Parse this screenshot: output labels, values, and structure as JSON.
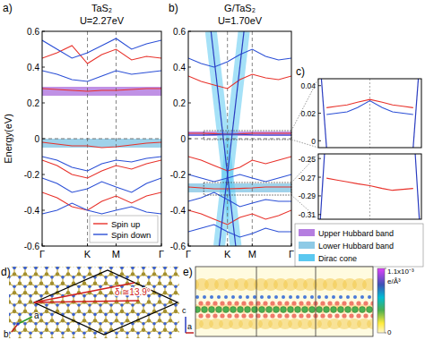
{
  "chart_data": [
    {
      "type": "line",
      "panel": "a)",
      "title": "TaS₂",
      "subtitle": "U=2.27eV",
      "y_label": "Energy(eV)",
      "x": [
        0,
        0.125,
        0.25,
        0.38,
        0.5,
        0.62,
        0.75,
        0.875,
        1
      ],
      "xlim": [
        0,
        1
      ],
      "xticks": [
        {
          "value": 0,
          "label": "Γ"
        },
        {
          "value": 0.38,
          "label": "K"
        },
        {
          "value": 0.62,
          "label": "M"
        },
        {
          "value": 1,
          "label": "Γ"
        }
      ],
      "ylim": [
        -0.6,
        0.6
      ],
      "yticks": [
        -0.6,
        -0.4,
        -0.2,
        0,
        0.2,
        0.4,
        0.6
      ],
      "fermi_level": 0,
      "legend": "lower right",
      "regions": [
        {
          "color": "#b57ee0",
          "range": [
            0.24,
            0.29
          ]
        },
        {
          "color": "#8ecae6",
          "range": [
            -0.05,
            0
          ]
        }
      ],
      "series": [
        {
          "name": "Spin up",
          "color": "#e8312a",
          "bands": [
            [
              0.28,
              0.275,
              0.27,
              0.265,
              0.27,
              0.27,
              0.275,
              0.28,
              0.28
            ],
            [
              0.45,
              0.48,
              0.52,
              0.42,
              0.47,
              0.5,
              0.44,
              0.46,
              0.45
            ],
            [
              -0.02,
              -0.03,
              -0.04,
              -0.04,
              -0.05,
              -0.045,
              -0.035,
              -0.025,
              -0.02
            ],
            [
              -0.12,
              -0.15,
              -0.2,
              -0.22,
              -0.18,
              -0.15,
              -0.17,
              -0.14,
              -0.12
            ],
            [
              -0.3,
              -0.33,
              -0.38,
              -0.4,
              -0.35,
              -0.32,
              -0.36,
              -0.32,
              -0.3
            ]
          ]
        },
        {
          "name": "Spin down",
          "color": "#2b4fd6",
          "bands": [
            [
              0.38,
              0.36,
              0.33,
              0.32,
              0.35,
              0.38,
              0.36,
              0.37,
              0.38
            ],
            [
              0.55,
              0.5,
              0.45,
              0.48,
              0.52,
              0.56,
              0.5,
              0.53,
              0.55
            ],
            [
              -0.1,
              -0.12,
              -0.16,
              -0.18,
              -0.14,
              -0.12,
              -0.13,
              -0.11,
              -0.1
            ],
            [
              -0.22,
              -0.25,
              -0.3,
              -0.28,
              -0.24,
              -0.27,
              -0.3,
              -0.25,
              -0.22
            ],
            [
              -0.42,
              -0.4,
              -0.36,
              -0.4,
              -0.42,
              -0.4,
              -0.38,
              -0.41,
              -0.42
            ]
          ]
        }
      ]
    },
    {
      "type": "line",
      "panel": "b)",
      "title": "G/TaS₂",
      "subtitle": "U=1.70eV",
      "x": [
        0,
        0.125,
        0.25,
        0.38,
        0.5,
        0.62,
        0.75,
        0.875,
        1
      ],
      "xlim": [
        0,
        1
      ],
      "xticks": [
        {
          "value": 0,
          "label": "Γ"
        },
        {
          "value": 0.38,
          "label": "K"
        },
        {
          "value": 0.62,
          "label": "M"
        },
        {
          "value": 1,
          "label": "Γ"
        }
      ],
      "ylim": [
        -0.6,
        0.6
      ],
      "yticks": [
        -0.6,
        -0.4,
        -0.2,
        0,
        0.2,
        0.4,
        0.6
      ],
      "fermi_level": 0,
      "regions": [
        {
          "color": "#b57ee0",
          "range": [
            0.015,
            0.04
          ]
        },
        {
          "color": "#8ecae6",
          "range": [
            -0.3,
            -0.25
          ]
        }
      ],
      "dirac_cone": {
        "color": "#5bc8f0",
        "lines": [
          {
            "x": [
              0.22,
              0.46
            ],
            "values": [
              0.6,
              -0.6
            ]
          },
          {
            "x": [
              0.54,
              0.3
            ],
            "values": [
              0.6,
              -0.6
            ]
          }
        ]
      },
      "series": [
        {
          "color": "#e8312a",
          "bands": [
            [
              0.03,
              0.03,
              0.028,
              0.025,
              0.027,
              0.03,
              0.03,
              0.03,
              0.03
            ],
            [
              -0.27,
              -0.275,
              -0.28,
              -0.28,
              -0.278,
              -0.275,
              -0.27,
              -0.27,
              -0.27
            ],
            [
              0.35,
              0.32,
              0.3,
              0.28,
              0.33,
              0.36,
              0.34,
              0.33,
              0.35
            ],
            [
              -0.4,
              -0.42,
              -0.45,
              -0.48,
              -0.44,
              -0.42,
              -0.45,
              -0.43,
              -0.4
            ],
            [
              -0.1,
              -0.12,
              -0.15,
              -0.18,
              -0.16,
              -0.12,
              -0.14,
              -0.12,
              -0.1
            ]
          ]
        },
        {
          "color": "#2b4fd6",
          "bands": [
            [
              0.02,
              0.02,
              0.022,
              0.025,
              0.024,
              0.021,
              0.02,
              0.02,
              0.02
            ],
            [
              0.45,
              0.42,
              0.4,
              0.43,
              0.47,
              0.5,
              0.46,
              0.44,
              0.45
            ],
            [
              -0.2,
              -0.22,
              -0.24,
              -0.22,
              -0.2,
              -0.22,
              -0.24,
              -0.22,
              -0.2
            ],
            [
              -0.35,
              -0.33,
              -0.3,
              -0.34,
              -0.38,
              -0.36,
              -0.34,
              -0.35,
              -0.35
            ],
            [
              -0.52,
              -0.5,
              -0.48,
              -0.52,
              -0.55,
              -0.53,
              -0.5,
              -0.52,
              -0.52
            ]
          ]
        }
      ]
    },
    {
      "type": "line",
      "panel": "c)",
      "x": [
        0.08,
        0.18,
        0.28,
        0.38,
        0.5,
        0.62,
        0.72,
        0.82,
        0.92
      ],
      "xlim": [
        0,
        1
      ],
      "ylim": [
        -0.005,
        0.045
      ],
      "yticks": [
        0,
        0.02,
        0.04
      ],
      "tick_labels": "y",
      "vlines": [
        0.5
      ],
      "dirac_cone": {
        "lines": [
          {
            "x": [
              0.03,
              0.08
            ],
            "values": [
              0.045,
              -0.005
            ]
          },
          {
            "x": [
              0.97,
              0.92
            ],
            "values": [
              0.045,
              -0.005
            ]
          }
        ]
      },
      "series": [
        {
          "color": "#e8312a",
          "bands": [
            [
              0.024,
              0.025,
              0.026,
              0.028,
              0.03,
              0.028,
              0.026,
              0.025,
              0.024
            ]
          ]
        },
        {
          "color": "#2b4fd6",
          "bands": [
            [
              0.019,
              0.02,
              0.021,
              0.024,
              0.029,
              0.024,
              0.021,
              0.02,
              0.019
            ]
          ]
        }
      ]
    },
    {
      "type": "line",
      "x": [
        0.08,
        0.18,
        0.28,
        0.38,
        0.5,
        0.62,
        0.72,
        0.82,
        0.92
      ],
      "xlim": [
        0,
        1
      ],
      "ylim": [
        -0.315,
        -0.245
      ],
      "yticks": [
        -0.31,
        -0.29,
        -0.27,
        -0.25
      ],
      "tick_labels": "y",
      "vlines": [
        0.5
      ],
      "dirac_cone": {
        "lines": [
          {
            "x": [
              0.06,
              0.02
            ],
            "values": [
              -0.245,
              -0.315
            ]
          },
          {
            "x": [
              0.94,
              0.98
            ],
            "values": [
              -0.245,
              -0.315
            ]
          }
        ]
      },
      "series": [
        {
          "color": "#e8312a",
          "bands": [
            [
              -0.271,
              -0.273,
              -0.275,
              -0.277,
              -0.279,
              -0.282,
              -0.284,
              -0.283,
              -0.282
            ]
          ]
        }
      ]
    }
  ],
  "band_legend": [
    {
      "name": "Upper Hubbard band",
      "color": "#b57ee0"
    },
    {
      "name": "Lower Hubbard band",
      "color": "#8ecae6"
    },
    {
      "name": "Dirac cone",
      "color": "#5bc8f0"
    }
  ],
  "structure_panels": [
    {
      "panel": "d)",
      "annotation": "δ ≅13.9°",
      "axes": [
        "a",
        "b"
      ]
    },
    {
      "panel": "e)",
      "axes": [
        "c",
        "a"
      ],
      "colorbar": {
        "range": [
          0,
          0.0011
        ],
        "ticks": [
          0,
          {
            "value": 0.0011,
            "label": "1.1x10⁻³"
          }
        ],
        "unit": "e/Å³"
      }
    }
  ]
}
